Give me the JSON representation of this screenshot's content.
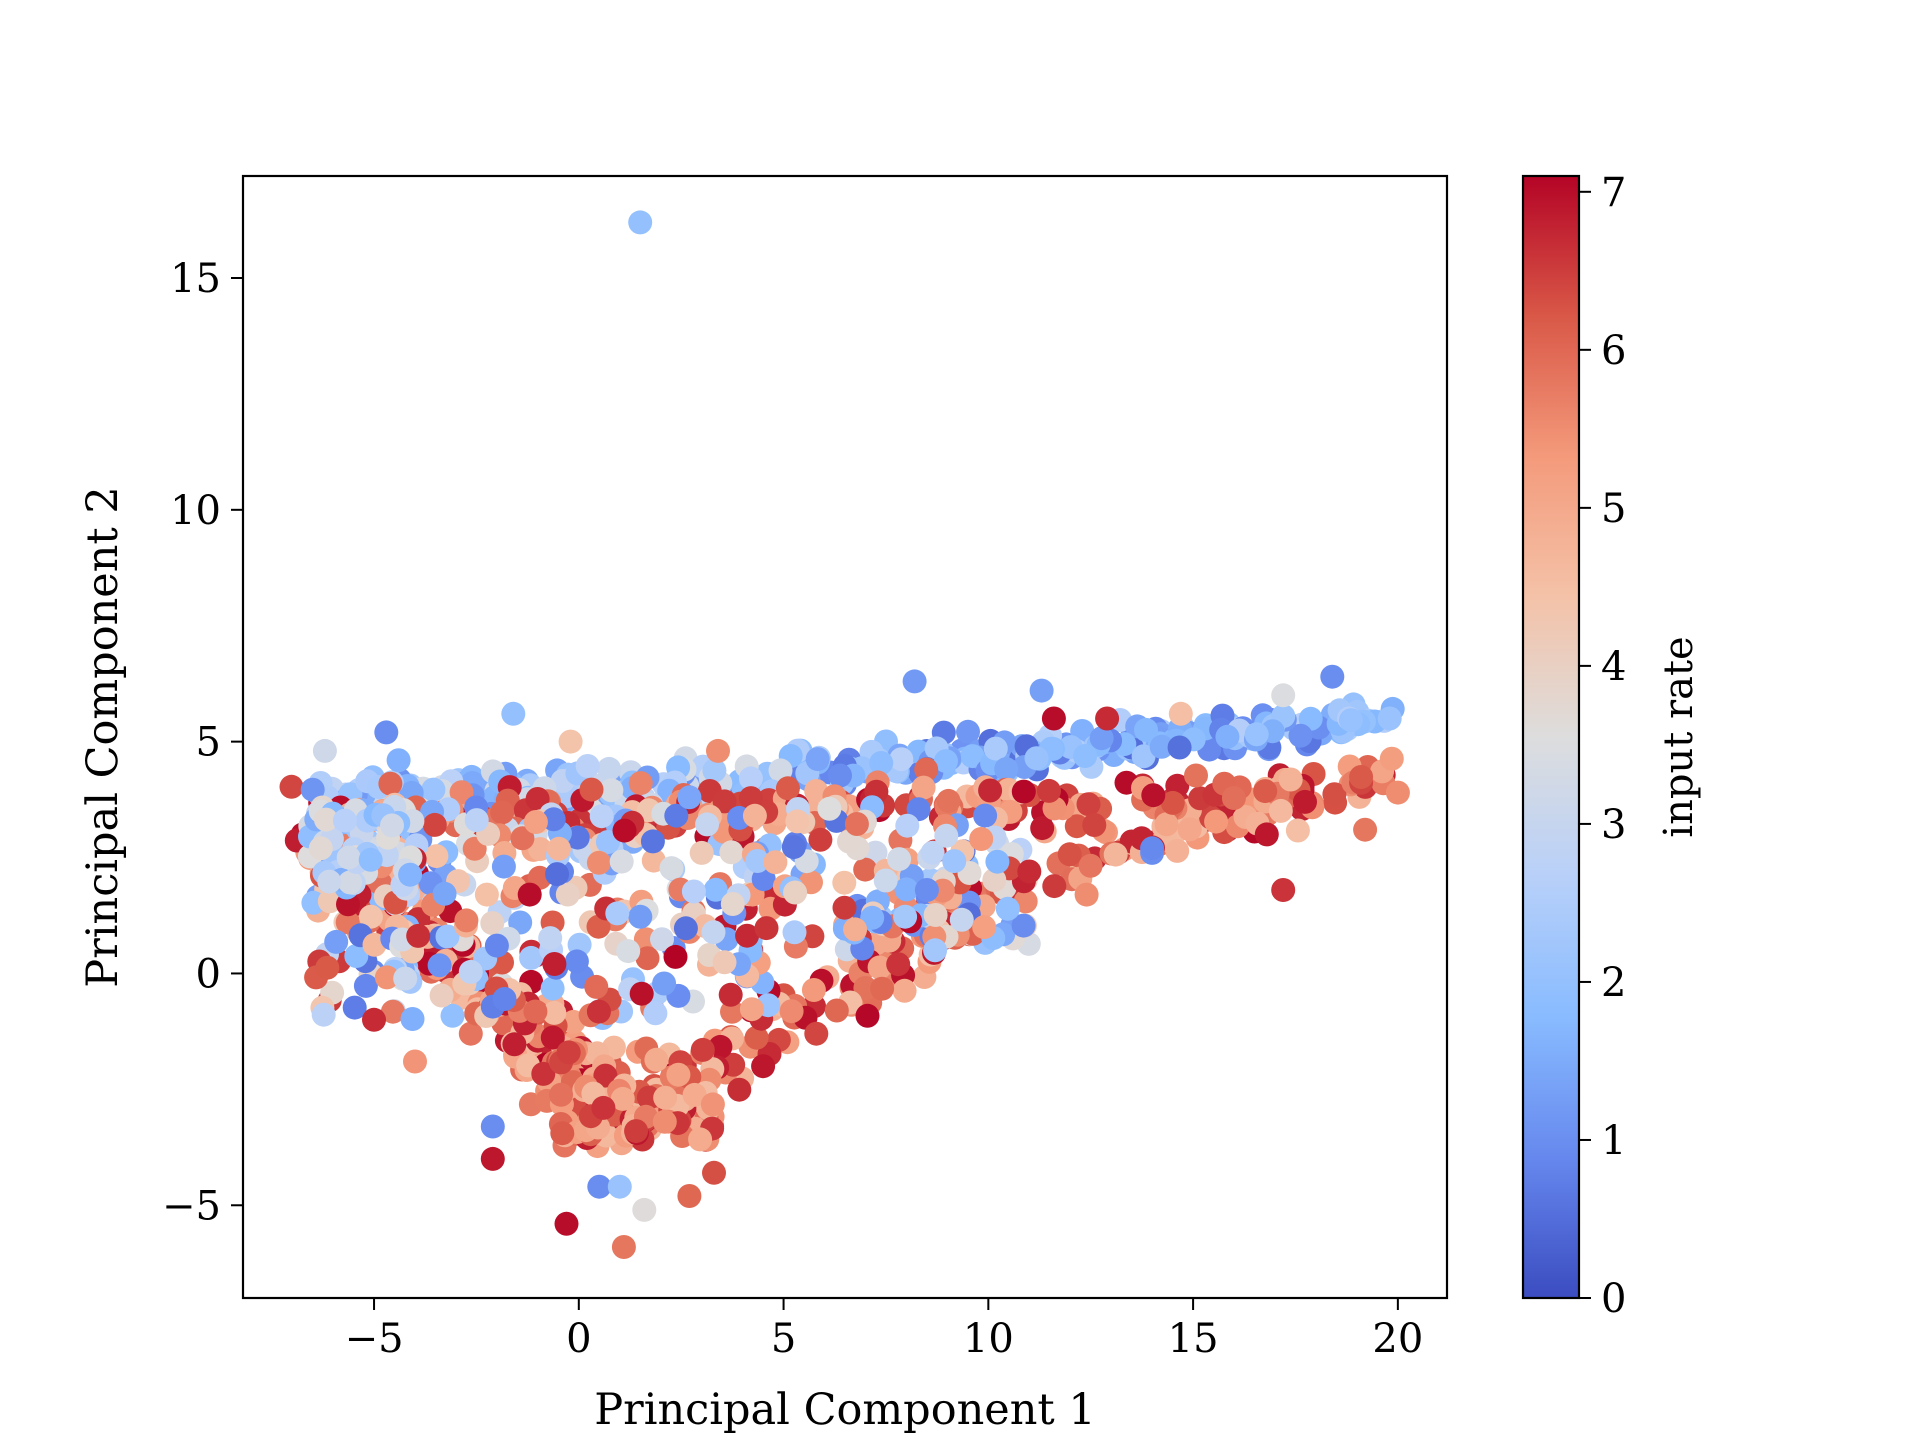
{
  "chart_data": {
    "type": "scatter",
    "title": "",
    "xlabel": "Principal Component 1",
    "ylabel": "Principal Component 2",
    "xlim": [
      -8.2,
      21.2
    ],
    "ylim": [
      -7.0,
      17.2
    ],
    "xticks": [
      -5,
      0,
      5,
      10,
      15,
      20
    ],
    "yticks": [
      -5,
      0,
      5,
      10,
      15
    ],
    "xtick_labels": [
      "−5",
      "0",
      "5",
      "10",
      "15",
      "20"
    ],
    "ytick_labels": [
      "−5",
      "0",
      "5",
      "10",
      "15"
    ],
    "grid": false,
    "colormap": "coolwarm",
    "colorbar": {
      "label": "input rate",
      "range": [
        0,
        7.1
      ],
      "ticks": [
        0,
        1,
        2,
        3,
        4,
        5,
        6,
        7
      ],
      "tick_labels": [
        "0",
        "1",
        "2",
        "3",
        "4",
        "5",
        "6",
        "7"
      ],
      "colors": [
        "#3b4cc0",
        "#6688ee",
        "#88bbff",
        "#b8d0f9",
        "#dddddd",
        "#f4c2a8",
        "#f49a7b",
        "#d95847",
        "#b40426"
      ]
    },
    "points": [
      {
        "x": 1.5,
        "y": 16.2,
        "c": 2.0
      },
      {
        "x": 8.2,
        "y": 6.3,
        "c": 1.2
      },
      {
        "x": 11.3,
        "y": 6.1,
        "c": 1.3
      },
      {
        "x": 11.6,
        "y": 5.5,
        "c": 7.0
      },
      {
        "x": 12.9,
        "y": 5.5,
        "c": 6.7
      },
      {
        "x": 14.7,
        "y": 5.6,
        "c": 4.5
      },
      {
        "x": 17.2,
        "y": 6.0,
        "c": 3.5
      },
      {
        "x": 18.4,
        "y": 6.4,
        "c": 1.0
      },
      {
        "x": 19.8,
        "y": 5.5,
        "c": 2.1
      },
      {
        "x": 20.0,
        "y": 3.9,
        "c": 5.5
      },
      {
        "x": 19.2,
        "y": 3.1,
        "c": 5.8
      },
      {
        "x": 16.8,
        "y": 3.0,
        "c": 6.9
      },
      {
        "x": 17.2,
        "y": 1.8,
        "c": 6.6
      },
      {
        "x": 14.0,
        "y": 2.6,
        "c": 1.0
      },
      {
        "x": 14.0,
        "y": 2.7,
        "c": 0.9
      },
      {
        "x": 12.4,
        "y": 1.7,
        "c": 5.5
      },
      {
        "x": 9.9,
        "y": 1.0,
        "c": 5.2
      },
      {
        "x": 8.7,
        "y": 0.5,
        "c": 2.3
      },
      {
        "x": 7.8,
        "y": 0.2,
        "c": 6.6
      },
      {
        "x": 6.3,
        "y": -0.8,
        "c": 6.0
      },
      {
        "x": 5.8,
        "y": -1.3,
        "c": 6.4
      },
      {
        "x": 4.5,
        "y": -2.0,
        "c": 6.9
      },
      {
        "x": 2.7,
        "y": -4.8,
        "c": 6.0
      },
      {
        "x": 3.3,
        "y": -4.3,
        "c": 6.3
      },
      {
        "x": -2.1,
        "y": -3.3,
        "c": 1.0
      },
      {
        "x": -2.1,
        "y": -4.0,
        "c": 6.9
      },
      {
        "x": -5.0,
        "y": -1.0,
        "c": 6.7
      },
      {
        "x": -4.0,
        "y": -1.9,
        "c": 5.4
      },
      {
        "x": -4.7,
        "y": 5.2,
        "c": 1.0
      },
      {
        "x": -6.2,
        "y": 4.8,
        "c": 3.2
      },
      {
        "x": -1.6,
        "y": 5.6,
        "c": 2.0
      },
      {
        "x": -0.2,
        "y": 5.0,
        "c": 4.4
      },
      {
        "x": 3.4,
        "y": 4.8,
        "c": 5.5
      },
      {
        "x": -0.3,
        "y": -5.4,
        "c": 7.0
      },
      {
        "x": 1.1,
        "y": -5.9,
        "c": 5.8
      },
      {
        "x": 0.5,
        "y": -4.6,
        "c": 1.0
      },
      {
        "x": 1.0,
        "y": -4.6,
        "c": 2.1
      },
      {
        "x": 1.6,
        "y": -5.1,
        "c": 3.6
      },
      {
        "x": 1.4,
        "y": -3.4,
        "c": 6.5
      },
      {
        "x": 2.1,
        "y": -3.2,
        "c": 5.5
      },
      {
        "x": 0.6,
        "y": -2.9,
        "c": 6.6
      },
      {
        "x": -1.2,
        "y": 1.7,
        "c": 7.0
      },
      {
        "x": 3.0,
        "y": 2.6,
        "c": 4.2
      },
      {
        "x": 4.8,
        "y": 2.4,
        "c": 4.8
      },
      {
        "x": 8.5,
        "y": 1.8,
        "c": 1.0
      },
      {
        "x": -6.3,
        "y": 2.7,
        "c": 3.7
      },
      {
        "x": -4.4,
        "y": 4.6,
        "c": 1.6
      },
      {
        "x": 2.7,
        "y": 3.8,
        "c": 1.4
      },
      {
        "x": 4.3,
        "y": 3.4,
        "c": 4.8
      },
      {
        "x": 11.0,
        "y": 2.2,
        "c": 6.7
      }
    ],
    "clusters": [
      {
        "kind": "band",
        "x1": -6.5,
        "y1": 2.9,
        "x2": 0.8,
        "y2": -3.1,
        "spread": 0.8,
        "n": 200,
        "cmin": 4.5,
        "cmax": 7.1
      },
      {
        "kind": "band",
        "x1": 0.8,
        "y1": -3.2,
        "x2": 10.2,
        "y2": 1.6,
        "spread": 0.7,
        "n": 90,
        "cmin": 4.5,
        "cmax": 7.1
      },
      {
        "kind": "band",
        "x1": 10.0,
        "y1": 1.8,
        "x2": 20.0,
        "y2": 4.5,
        "spread": 0.4,
        "n": 90,
        "cmin": 4.5,
        "cmax": 7.1
      },
      {
        "kind": "band",
        "x1": 5.0,
        "y1": 4.3,
        "x2": 20.0,
        "y2": 5.5,
        "spread": 0.3,
        "n": 230,
        "cmin": 0.5,
        "cmax": 2.7
      },
      {
        "kind": "band",
        "x1": -6.4,
        "y1": 3.7,
        "x2": 5.0,
        "y2": 4.1,
        "spread": 0.5,
        "n": 180,
        "cmin": 1.0,
        "cmax": 3.5
      },
      {
        "kind": "band",
        "x1": -6.0,
        "y1": 3.4,
        "x2": 18.0,
        "y2": 3.8,
        "spread": 0.45,
        "n": 180,
        "cmin": 4.5,
        "cmax": 7.1
      },
      {
        "kind": "box",
        "x1": -6.5,
        "y1": -1.0,
        "x2": 5.0,
        "y2": 3.6,
        "n": 320,
        "cmin": 0.5,
        "cmax": 7.1
      },
      {
        "kind": "box",
        "x1": 5.0,
        "y1": 0.5,
        "x2": 11.0,
        "y2": 3.6,
        "n": 130,
        "cmin": 0.5,
        "cmax": 7.1
      },
      {
        "kind": "box",
        "x1": -0.5,
        "y1": -3.6,
        "x2": 3.3,
        "y2": -1.6,
        "n": 110,
        "cmin": 4.5,
        "cmax": 7.1
      },
      {
        "kind": "box",
        "x1": -6.6,
        "y1": 1.8,
        "x2": -4.0,
        "y2": 3.6,
        "n": 60,
        "cmin": 1.5,
        "cmax": 3.8
      }
    ]
  }
}
